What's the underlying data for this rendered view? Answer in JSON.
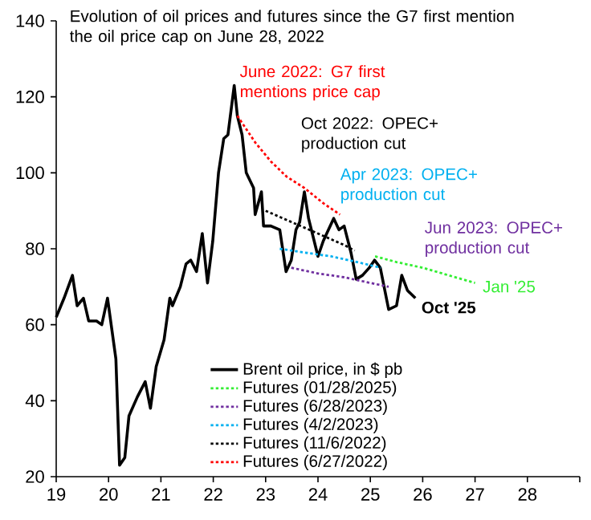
{
  "chart_data": {
    "type": "line",
    "title": "Evolution of oil prices and futures since the G7 first mention the oil price cap on June 28, 2022",
    "xlim": [
      19,
      29
    ],
    "ylim": [
      20,
      140
    ],
    "xticks": [
      19,
      20,
      21,
      22,
      23,
      24,
      25,
      26,
      27,
      28,
      {
        "value": 29,
        "label": null
      }
    ],
    "yticks": [
      20,
      40,
      60,
      80,
      100,
      120,
      140
    ],
    "legend": "bottom",
    "series": [
      {
        "name": "Brent oil price, in $ pb",
        "color": "#000000",
        "line_style": "solid",
        "x": [
          19.0,
          19.15,
          19.31,
          19.4,
          19.52,
          19.62,
          19.77,
          19.87,
          19.98,
          20.14,
          20.21,
          20.31,
          20.39,
          20.55,
          20.7,
          20.8,
          20.91,
          21.06,
          21.17,
          21.22,
          21.37,
          21.48,
          21.57,
          21.68,
          21.79,
          21.89,
          21.99,
          22.1,
          22.2,
          22.28,
          22.4,
          22.46,
          22.55,
          22.63,
          22.77,
          22.8,
          22.92,
          22.96,
          23.1,
          23.27,
          23.39,
          23.49,
          23.58,
          23.65,
          23.74,
          23.82,
          24.0,
          24.1,
          24.2,
          24.3,
          24.4,
          24.5,
          24.63,
          24.73,
          24.85,
          24.98,
          25.08,
          25.19,
          25.35,
          25.5,
          25.6,
          25.71,
          25.86
        ],
        "values": [
          62,
          67,
          73,
          65,
          67,
          61,
          61,
          60,
          67,
          51,
          23,
          25,
          36,
          41,
          45,
          38,
          49,
          56,
          67,
          65,
          70,
          76,
          77,
          74,
          84,
          71,
          82,
          100,
          109,
          110,
          123,
          115,
          110,
          100,
          96,
          89,
          95,
          86,
          86,
          85,
          74,
          77,
          85,
          87,
          95,
          88,
          78,
          82,
          85,
          88,
          85,
          86,
          79,
          72,
          73,
          75,
          77,
          75,
          64,
          65,
          73,
          69,
          67
        ]
      },
      {
        "name": "Futures (01/28/2025)",
        "color": "#33ee33",
        "line_style": "dotted",
        "x": [
          25.09,
          25.5,
          26.0,
          26.5,
          27.0
        ],
        "values": [
          78,
          76.5,
          75,
          73,
          71
        ]
      },
      {
        "name": "Futures (6/28/2023)",
        "color": "#7030a0",
        "line_style": "dotted",
        "x": [
          23.49,
          24.0,
          24.5,
          25.0,
          25.35
        ],
        "values": [
          75,
          73.5,
          72.5,
          71,
          70
        ]
      },
      {
        "name": "Futures (4/2/2023)",
        "color": "#00b0f0",
        "line_style": "dotted",
        "x": [
          23.27,
          23.75,
          24.25,
          24.75,
          25.2
        ],
        "values": [
          80,
          79,
          78,
          76.5,
          75
        ]
      },
      {
        "name": "Futures (11/6/2022)",
        "color": "#000000",
        "line_style": "dotted",
        "x": [
          23.0,
          23.5,
          24.0,
          24.5,
          24.7
        ],
        "values": [
          90,
          87,
          84,
          81,
          79.5
        ]
      },
      {
        "name": "Futures (6/27/2022)",
        "color": "#ff0000",
        "line_style": "dotted",
        "x": [
          22.46,
          22.8,
          23.1,
          23.4,
          23.74,
          24.1,
          24.42
        ],
        "values": [
          115,
          108,
          103,
          99,
          96,
          92,
          89
        ]
      }
    ],
    "annotations": [
      "Oct '25",
      "Jan '25",
      "Jun 2023: OPEC+ production cut",
      "Apr 2023: OPEC+ production cut",
      "Oct 2022: OPEC+ production cut",
      "June 2022: G7 first mentions price cap"
    ]
  }
}
